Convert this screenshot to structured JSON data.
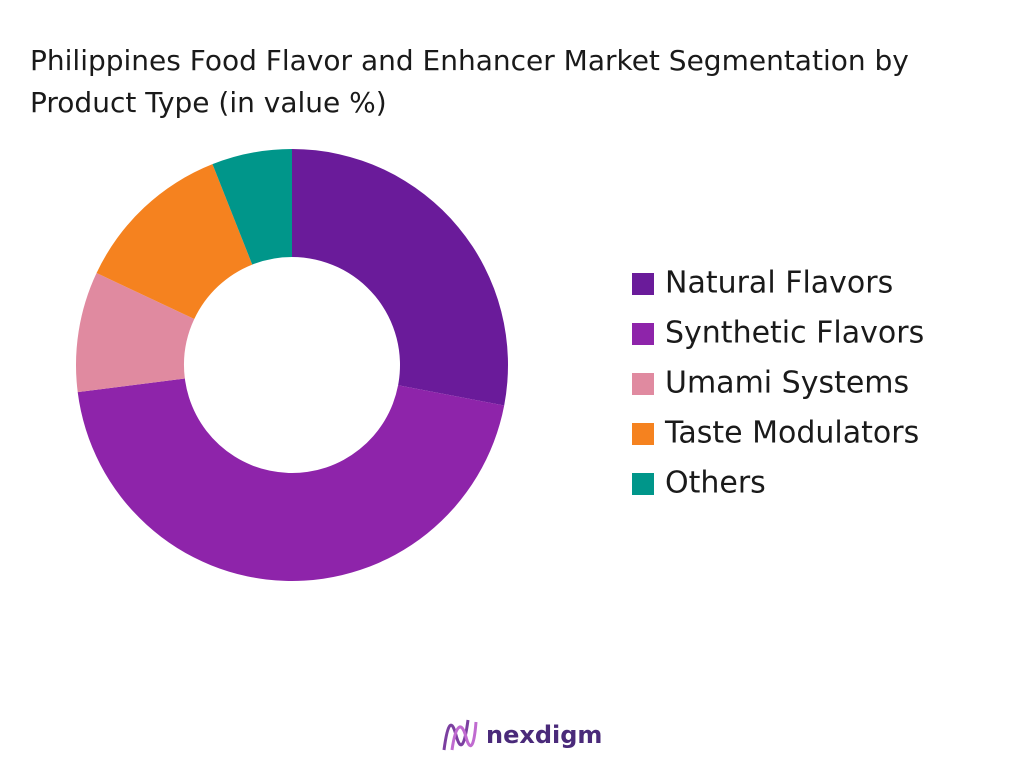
{
  "chart_data": {
    "type": "donut",
    "title": "Philippines Food Flavor and Enhancer Market Segmentation by Product Type (in value %)",
    "categories": [
      "Natural Flavors",
      "Synthetic Flavors",
      "Umami Systems",
      "Taste Modulators",
      "Others"
    ],
    "values": [
      28,
      45,
      9,
      12,
      6
    ],
    "colors": [
      "#6a1b9a",
      "#8e24aa",
      "#e08aa0",
      "#f5821f",
      "#00968a"
    ],
    "legend": "right"
  },
  "footer": {
    "logo": "nexdigm"
  }
}
